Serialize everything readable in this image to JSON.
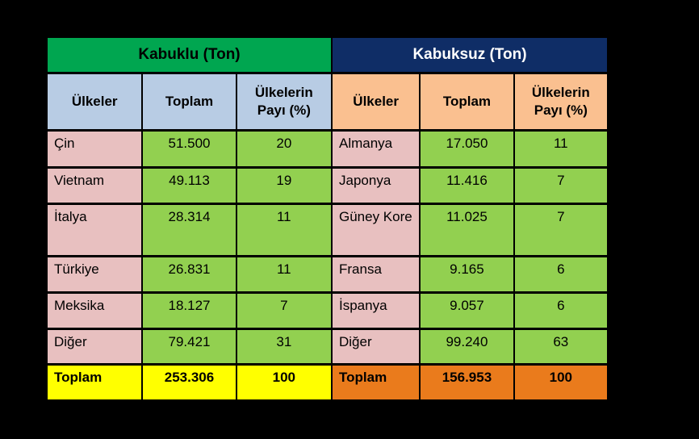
{
  "colors": {
    "background": "#000000",
    "band_left_green": "#00A650",
    "band_right_navy": "#0F2D66",
    "band_right_text": "#FFFFFF",
    "header_light_blue": "#B8CCE4",
    "header_peach": "#FAC090",
    "country_pink": "#E8C0C0",
    "value_green": "#92D050",
    "total_yellow": "#FFFF00",
    "total_orange": "#EA7B1C",
    "grid_border": "#000000"
  },
  "left_table": {
    "band_title": "Kabuklu (Ton)",
    "headers": {
      "country": "Ülkeler",
      "total": "Toplam",
      "share": "Ülkelerin Payı (%)"
    },
    "rows": [
      {
        "country": "Çin",
        "total": "51.500",
        "share": "20"
      },
      {
        "country": "Vietnam",
        "total": "49.113",
        "share": "19"
      },
      {
        "country": "İtalya",
        "total": "28.314",
        "share": "11"
      },
      {
        "country": "Türkiye",
        "total": "26.831",
        "share": "11"
      },
      {
        "country": "Meksika",
        "total": "18.127",
        "share": "7"
      },
      {
        "country": "Diğer",
        "total": "79.421",
        "share": "31"
      }
    ],
    "total_row": {
      "label": "Toplam",
      "total": "253.306",
      "share": "100"
    }
  },
  "right_table": {
    "band_title": "Kabuksuz (Ton)",
    "headers": {
      "country": "Ülkeler",
      "total": "Toplam",
      "share": "Ülkelerin Payı (%)"
    },
    "rows": [
      {
        "country": "Almanya",
        "total": "17.050",
        "share": "11"
      },
      {
        "country": "Japonya",
        "total": "11.416",
        "share": "7"
      },
      {
        "country": "Güney Kore",
        "total": "11.025",
        "share": "7"
      },
      {
        "country": "Fransa",
        "total": "9.165",
        "share": "6"
      },
      {
        "country": "İspanya",
        "total": "9.057",
        "share": "6"
      },
      {
        "country": "Diğer",
        "total": "99.240",
        "share": "63"
      }
    ],
    "total_row": {
      "label": "Toplam",
      "total": "156.953",
      "share": "100"
    }
  },
  "chart_data": [
    {
      "type": "table",
      "title": "Kabuklu (Ton)",
      "columns": [
        "Ülkeler",
        "Toplam",
        "Ülkelerin Payı (%)"
      ],
      "rows": [
        [
          "Çin",
          51500,
          20
        ],
        [
          "Vietnam",
          49113,
          19
        ],
        [
          "İtalya",
          28314,
          11
        ],
        [
          "Türkiye",
          26831,
          11
        ],
        [
          "Meksika",
          18127,
          7
        ],
        [
          "Diğer",
          79421,
          31
        ]
      ],
      "total_row": [
        "Toplam",
        253306,
        100
      ]
    },
    {
      "type": "table",
      "title": "Kabuksuz (Ton)",
      "columns": [
        "Ülkeler",
        "Toplam",
        "Ülkelerin Payı (%)"
      ],
      "rows": [
        [
          "Almanya",
          17050,
          11
        ],
        [
          "Japonya",
          11416,
          7
        ],
        [
          "Güney Kore",
          11025,
          7
        ],
        [
          "Fransa",
          9165,
          6
        ],
        [
          "İspanya",
          9057,
          6
        ],
        [
          "Diğer",
          99240,
          63
        ]
      ],
      "total_row": [
        "Toplam",
        156953,
        100
      ]
    }
  ]
}
